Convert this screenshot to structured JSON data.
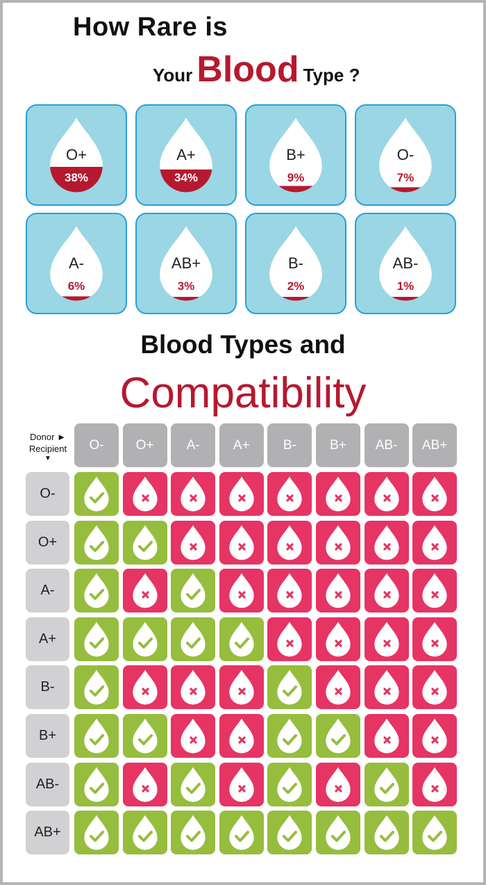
{
  "header": {
    "line1": "How Rare is",
    "your": "Your",
    "blood": "Blood",
    "type": "Type ?"
  },
  "rarity": [
    {
      "type": "O+",
      "percent": "38%",
      "value": 38
    },
    {
      "type": "A+",
      "percent": "34%",
      "value": 34
    },
    {
      "type": "B+",
      "percent": "9%",
      "value": 9
    },
    {
      "type": "O-",
      "percent": "7%",
      "value": 7
    },
    {
      "type": "A-",
      "percent": "6%",
      "value": 6
    },
    {
      "type": "AB+",
      "percent": "3%",
      "value": 3
    },
    {
      "type": "B-",
      "percent": "2%",
      "value": 2
    },
    {
      "type": "AB-",
      "percent": "1%",
      "value": 1
    }
  ],
  "compat_title": {
    "line1": "Blood Types and",
    "line2": "Compatibility"
  },
  "matrix": {
    "donor_label": "Donor ►",
    "recipient_label": "Recipient",
    "recipient_arrow": "▼",
    "donors": [
      "O-",
      "O+",
      "A-",
      "A+",
      "B-",
      "B+",
      "AB-",
      "AB+"
    ],
    "recipients": [
      "O-",
      "O+",
      "A-",
      "A+",
      "B-",
      "B+",
      "AB-",
      "AB+"
    ],
    "compatible": [
      [
        1,
        0,
        0,
        0,
        0,
        0,
        0,
        0
      ],
      [
        1,
        1,
        0,
        0,
        0,
        0,
        0,
        0
      ],
      [
        1,
        0,
        1,
        0,
        0,
        0,
        0,
        0
      ],
      [
        1,
        1,
        1,
        1,
        0,
        0,
        0,
        0
      ],
      [
        1,
        0,
        0,
        0,
        1,
        0,
        0,
        0
      ],
      [
        1,
        1,
        0,
        0,
        1,
        1,
        0,
        0
      ],
      [
        1,
        0,
        1,
        0,
        1,
        0,
        1,
        0
      ],
      [
        1,
        1,
        1,
        1,
        1,
        1,
        1,
        1
      ]
    ]
  },
  "colors": {
    "brand_red": "#b5192f",
    "tile_bg": "#9ad6e4",
    "tile_border": "#2a9fd7",
    "compatible": "#96bd3e",
    "incompatible": "#e63464",
    "header_gray": "#b1b1b3",
    "row_gray": "#d1d1d3"
  },
  "icons": {
    "rarity_tile": "blood-drop-icon",
    "compatible": "check-drop-icon",
    "incompatible": "cross-drop-icon"
  }
}
